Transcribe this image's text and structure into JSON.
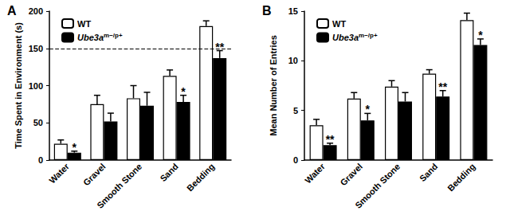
{
  "chart_data": [
    {
      "title": "A",
      "type": "bar",
      "y_label": "Time Spent in Environment (s)",
      "categories": [
        "Water",
        "Gravel",
        "Smooth Stone",
        "Sand",
        "Bedding"
      ],
      "series": [
        {
          "name": "WT",
          "color": "#ffffff",
          "values": [
            22,
            75,
            83,
            113,
            180
          ],
          "errors": [
            5,
            12,
            17,
            8,
            7
          ]
        },
        {
          "name": "Ube3a",
          "superscript": "m−/p+",
          "color": "#000000",
          "values": [
            10,
            52,
            73,
            78,
            137
          ],
          "errors": [
            2,
            11,
            18,
            9,
            10
          ],
          "significance": [
            "*",
            null,
            null,
            "*",
            "**"
          ]
        }
      ],
      "reference_line": 150,
      "ylim": [
        0,
        200
      ],
      "yticks": [
        0,
        50,
        100,
        150,
        200
      ],
      "legend": "top-left"
    },
    {
      "title": "B",
      "type": "bar",
      "y_label": "Mean Number of Entries",
      "categories": [
        "Water",
        "Gravel",
        "Smooth Stone",
        "Sand",
        "Bedding"
      ],
      "series": [
        {
          "name": "WT",
          "color": "#ffffff",
          "values": [
            3.5,
            6.2,
            7.4,
            8.7,
            14.1
          ],
          "errors": [
            0.6,
            0.6,
            0.6,
            0.4,
            0.7
          ]
        },
        {
          "name": "Ube3a",
          "superscript": "m−/p+",
          "color": "#000000",
          "values": [
            1.5,
            4.0,
            5.9,
            6.4,
            11.6
          ],
          "errors": [
            0.2,
            0.7,
            0.9,
            0.6,
            0.6
          ],
          "significance": [
            "**",
            "*",
            null,
            "**",
            "*"
          ]
        }
      ],
      "ylim": [
        0,
        15
      ],
      "yticks": [
        0,
        5,
        10,
        15
      ],
      "legend": "top-left"
    }
  ]
}
